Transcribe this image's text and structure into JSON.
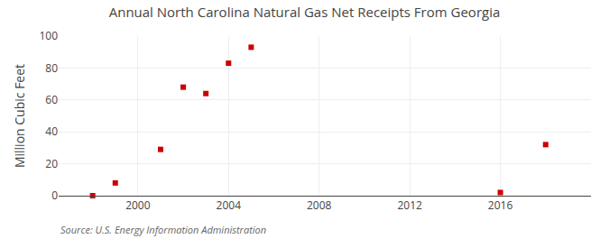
{
  "chart_data": {
    "type": "scatter",
    "title": "Annual North Carolina Natural Gas Net Receipts From Georgia",
    "ylabel": "Million Cubic Feet",
    "annotations": [
      "Source: U.S. Energy Information Administration"
    ],
    "x": [
      1998,
      1999,
      2001,
      2002,
      2003,
      2004,
      2005,
      2016,
      2018
    ],
    "values": [
      0,
      8,
      29,
      68,
      64,
      83,
      93,
      2,
      32
    ],
    "color": "#cc0000",
    "marker": "square",
    "xlim": [
      1996.5,
      2020
    ],
    "ylim": [
      0,
      100
    ],
    "xticks": [
      2000,
      2004,
      2008,
      2012,
      2016
    ],
    "yticks": [
      0,
      20,
      40,
      60,
      80,
      100
    ],
    "grid": true
  }
}
